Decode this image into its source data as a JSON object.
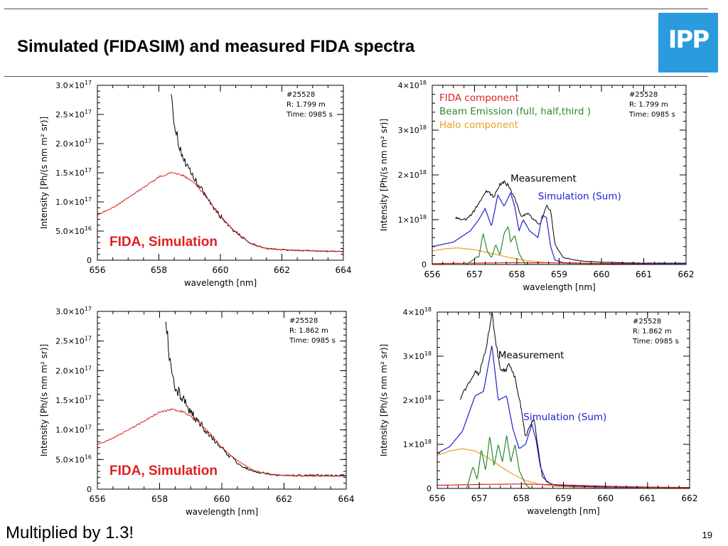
{
  "slide": {
    "title": "Simulated (FIDASIM) and measured FIDA spectra",
    "logo_text": "IPP",
    "footer_note": "Multiplied by 1.3!",
    "page_number": "19",
    "colors": {
      "logo_blue": "#2a9bdc",
      "red": "#e02020",
      "blue": "#2020d0",
      "green": "#2a8a2a",
      "orange": "#e8a020"
    }
  },
  "chart_data": [
    {
      "id": "tl",
      "type": "line",
      "xlabel": "wavelength [nm]",
      "ylabel": "Intensity [Ph/(s nm m² sr)]",
      "xlim": [
        656,
        664
      ],
      "ylim": [
        0,
        3e+17
      ],
      "xticks": [
        "656",
        "658",
        "660",
        "662",
        "664"
      ],
      "yticks": [
        {
          "m": "0",
          "e": ""
        },
        {
          "m": "5.0×10",
          "e": "16"
        },
        {
          "m": "1.0×10",
          "e": "17"
        },
        {
          "m": "1.5×10",
          "e": "17"
        },
        {
          "m": "2.0×10",
          "e": "17"
        },
        {
          "m": "2.5×10",
          "e": "17"
        },
        {
          "m": "3.0×10",
          "e": "17"
        }
      ],
      "info": [
        "#25528",
        "R: 1.799 m",
        "Time: 0985 s"
      ],
      "annotation": "FIDA, Simulation",
      "series": [
        {
          "color": "#000000",
          "noise": 0.05,
          "x": [
            658.4,
            658.45,
            658.55,
            658.7,
            658.9,
            659.2,
            659.6,
            660.0,
            660.5,
            661.0,
            661.5,
            662.0,
            663.0,
            664.0
          ],
          "y": [
            3e+17,
            2.6e+17,
            2.2e+17,
            1.9e+17,
            1.6e+17,
            1.35e+17,
            1.05e+17,
            7.5e+16,
            4.8e+16,
            2.8e+16,
            2e+16,
            1.8e+16,
            1.6e+16,
            1.5e+16
          ]
        },
        {
          "color": "#e02020",
          "noise": 0.012,
          "x": [
            656.0,
            656.5,
            657.0,
            657.5,
            658.0,
            658.4,
            658.8,
            659.2,
            659.6,
            660.0,
            660.5,
            661.0,
            661.5,
            662.0,
            663.0,
            664.0
          ],
          "y": [
            7.8e+16,
            9e+16,
            1.07e+17,
            1.25e+17,
            1.43e+17,
            1.5e+17,
            1.45e+17,
            1.3e+17,
            1.05e+17,
            7.5e+16,
            4.8e+16,
            2.8e+16,
            2e+16,
            1.8e+16,
            1.6e+16,
            1.5e+16
          ]
        }
      ]
    },
    {
      "id": "tr",
      "type": "line",
      "xlabel": "wavelength [nm]",
      "ylabel": "Intensity [Ph/(s nm m² sr)]",
      "xlim": [
        656,
        662
      ],
      "ylim": [
        0,
        4e+18
      ],
      "xticks": [
        "656",
        "657",
        "658",
        "659",
        "660",
        "661",
        "662"
      ],
      "yticks": [
        {
          "m": "0",
          "e": ""
        },
        {
          "m": "1×10",
          "e": "18"
        },
        {
          "m": "2×10",
          "e": "18"
        },
        {
          "m": "3×10",
          "e": "18"
        },
        {
          "m": "4×10",
          "e": "18"
        }
      ],
      "info": [
        "#25528",
        "R: 1.799 m",
        "Time: 0985 s"
      ],
      "legend": [
        {
          "text": "FIDA component",
          "color": "#e02020"
        },
        {
          "text": "Beam Emission (full, half,third )",
          "color": "#2a8a2a"
        },
        {
          "text": "Halo component",
          "color": "#e8a020"
        }
      ],
      "labels": [
        {
          "text": "Measurement",
          "color": "#000000",
          "x": 657.85,
          "y": 1.85e+18
        },
        {
          "text": "Simulation (Sum)",
          "color": "#2020d0",
          "x": 658.5,
          "y": 1.45e+18
        }
      ],
      "series": [
        {
          "name": "Measurement",
          "color": "#000000",
          "noise": 0.025,
          "x": [
            656.55,
            656.8,
            657.0,
            657.2,
            657.3,
            657.45,
            657.6,
            657.7,
            657.8,
            657.95,
            658.1,
            658.25,
            658.4,
            658.55,
            658.7,
            658.8,
            658.9,
            659.1,
            659.5,
            660.0,
            660.5,
            661.0,
            661.5,
            662.0
          ],
          "y": [
            1.05e+18,
            1e+18,
            1.2e+18,
            1.55e+18,
            1.65e+18,
            1.5e+18,
            1.8e+18,
            1.85e+18,
            1.75e+18,
            1.5e+18,
            1.05e+18,
            1.15e+18,
            1e+18,
            9e+17,
            1.3e+18,
            1.2e+18,
            4.5e+17,
            1.5e+17,
            8e+16,
            5e+16,
            4e+16,
            3e+16,
            3e+16,
            3e+16
          ]
        },
        {
          "name": "Simulation (Sum)",
          "color": "#2020d0",
          "noise": 0,
          "x": [
            656.0,
            656.5,
            656.9,
            657.1,
            657.25,
            657.4,
            657.55,
            657.7,
            657.85,
            657.95,
            658.05,
            658.15,
            658.3,
            658.5,
            658.6,
            658.7,
            658.8,
            658.9,
            659.1,
            659.5,
            660.0,
            661.0,
            662.0
          ],
          "y": [
            4e+17,
            5e+17,
            7.5e+17,
            1e+18,
            1.25e+18,
            8.5e+17,
            1.55e+18,
            1.3e+18,
            1.6e+18,
            1.3e+18,
            7.5e+17,
            1e+18,
            7.5e+17,
            6e+17,
            1.1e+18,
            1.05e+18,
            4e+17,
            1e+17,
            4e+16,
            3e+16,
            2e+16,
            2e+16,
            2e+16
          ]
        },
        {
          "name": "Halo component",
          "color": "#e8a020",
          "noise": 0,
          "x": [
            656.0,
            656.3,
            656.6,
            657.0,
            657.4,
            657.8,
            658.2,
            658.6,
            659.0,
            659.5,
            660.0,
            661.0,
            662.0
          ],
          "y": [
            3e+17,
            3.5e+17,
            3.7e+17,
            3.3e+17,
            2.5e+17,
            1.6e+17,
            9e+16,
            5e+16,
            3e+16,
            2e+16,
            1e+16,
            5000000000000000.0,
            0.0
          ]
        },
        {
          "name": "FIDA component",
          "color": "#e02020",
          "noise": 0,
          "x": [
            656.0,
            657.0,
            658.0,
            659.0,
            660.0,
            661.0,
            662.0
          ],
          "y": [
            2e+16,
            3e+16,
            4e+16,
            3.5e+16,
            2e+16,
            1e+16,
            0.0
          ]
        },
        {
          "name": "Beam Emission (full, half,third )",
          "color": "#2a8a2a",
          "noise": 0,
          "x": [
            656.8,
            657.0,
            657.05,
            657.1,
            657.2,
            657.3,
            657.4,
            657.5,
            657.6,
            657.7,
            657.8,
            657.85,
            657.95,
            658.05,
            658.2,
            658.3,
            658.4
          ],
          "y": [
            0.0,
            1.2e+17,
            1.8e+17,
            1.5e+17,
            7e+17,
            3e+17,
            1.5e+17,
            4.5e+17,
            2e+17,
            7e+17,
            8.5e+17,
            5e+17,
            6.5e+17,
            2.5e+17,
            0.0,
            0.0,
            0.0
          ]
        }
      ]
    },
    {
      "id": "bl",
      "type": "line",
      "xlabel": "wavelength [nm]",
      "ylabel": "Intensity [Ph/(s nm m² sr)]",
      "xlim": [
        656,
        664
      ],
      "ylim": [
        0,
        3e+17
      ],
      "xticks": [
        "656",
        "658",
        "660",
        "662",
        "664"
      ],
      "yticks": [
        {
          "m": "0",
          "e": ""
        },
        {
          "m": "5.0×10",
          "e": "16"
        },
        {
          "m": "1.0×10",
          "e": "17"
        },
        {
          "m": "1.5×10",
          "e": "17"
        },
        {
          "m": "2.0×10",
          "e": "17"
        },
        {
          "m": "2.5×10",
          "e": "17"
        },
        {
          "m": "3.0×10",
          "e": "17"
        }
      ],
      "info": [
        "#25528",
        "R: 1.862 m",
        "Time: 0985 s"
      ],
      "annotation": "FIDA, Simulation",
      "series": [
        {
          "color": "#000000",
          "noise": 0.06,
          "x": [
            658.2,
            658.25,
            658.35,
            658.5,
            658.7,
            659.0,
            659.4,
            659.8,
            660.2,
            660.6,
            661.0,
            661.5,
            662.0,
            663.0,
            664.0
          ],
          "y": [
            3e+17,
            2.6e+17,
            2.1e+17,
            1.75e+17,
            1.55e+17,
            1.3e+17,
            1.05e+17,
            8e+16,
            5.8e+16,
            4e+16,
            3e+16,
            2.5e+16,
            2.3e+16,
            2.3e+16,
            2.3e+16
          ]
        },
        {
          "color": "#e02020",
          "noise": 0.012,
          "x": [
            656.0,
            656.5,
            657.0,
            657.5,
            658.0,
            658.4,
            658.8,
            659.2,
            659.6,
            660.0,
            660.5,
            661.0,
            661.5,
            662.0,
            663.0,
            664.0
          ],
          "y": [
            7.5e+16,
            8.6e+16,
            1e+17,
            1.15e+17,
            1.3e+17,
            1.35e+17,
            1.3e+17,
            1.15e+17,
            9.5e+16,
            7e+16,
            4.8e+16,
            3.2e+16,
            2.5e+16,
            2.3e+16,
            2.2e+16,
            2.2e+16
          ]
        }
      ]
    },
    {
      "id": "br",
      "type": "line",
      "xlabel": "wavelength [nm]",
      "ylabel": "Intensity [Ph/(s nm m² sr)]",
      "xlim": [
        656,
        662
      ],
      "ylim": [
        0,
        4e+18
      ],
      "xticks": [
        "656",
        "657",
        "658",
        "659",
        "660",
        "661",
        "662"
      ],
      "yticks": [
        {
          "m": "0",
          "e": ""
        },
        {
          "m": "1×10",
          "e": "18"
        },
        {
          "m": "2×10",
          "e": "18"
        },
        {
          "m": "3×10",
          "e": "18"
        },
        {
          "m": "4×10",
          "e": "18"
        }
      ],
      "info": [
        "#25528",
        "R: 1.862 m",
        "Time: 0985 s"
      ],
      "labels": [
        {
          "text": "Measurement",
          "color": "#000000",
          "x": 657.45,
          "y": 2.95e+18
        },
        {
          "text": "Simulation (Sum)",
          "color": "#2020d0",
          "x": 658.05,
          "y": 1.55e+18
        }
      ],
      "series": [
        {
          "name": "Measurement",
          "color": "#000000",
          "noise": 0.02,
          "x": [
            656.55,
            656.7,
            656.9,
            657.0,
            657.15,
            657.3,
            657.4,
            657.5,
            657.6,
            657.7,
            657.85,
            658.0,
            658.1,
            658.2,
            658.3,
            658.4,
            658.5,
            658.7,
            659.0,
            659.5,
            660.0,
            660.5,
            661.0,
            661.5,
            662.0
          ],
          "y": [
            2.05e+18,
            2.3e+18,
            2.65e+18,
            2.6e+18,
            3.1e+18,
            3.95e+18,
            3.3e+18,
            2.7e+18,
            2.65e+18,
            2.8e+18,
            2.5e+18,
            1.8e+18,
            1.15e+18,
            1.4e+18,
            1.6e+18,
            9e+17,
            2.5e+17,
            1e+17,
            6e+16,
            5e+16,
            4e+16,
            3e+16,
            3e+16,
            2e+16,
            2e+16
          ]
        },
        {
          "name": "Simulation (Sum)",
          "color": "#2020d0",
          "noise": 0,
          "x": [
            656.0,
            656.3,
            656.6,
            656.9,
            657.1,
            657.3,
            657.45,
            657.65,
            657.8,
            657.95,
            658.1,
            658.25,
            658.35,
            658.45,
            658.6,
            658.8,
            659.2,
            660.0,
            661.0,
            662.0
          ],
          "y": [
            8e+17,
            9.5e+17,
            1.3e+18,
            2.1e+18,
            2.2e+18,
            3.25e+18,
            2e+18,
            2.1e+18,
            1.35e+18,
            9e+17,
            1e+18,
            1.45e+18,
            1.1e+18,
            5e+17,
            1.5e+17,
            7e+16,
            5e+16,
            3e+16,
            2e+16,
            2e+16
          ]
        },
        {
          "name": "Halo component",
          "color": "#e8a020",
          "noise": 0,
          "x": [
            656.0,
            656.3,
            656.6,
            656.9,
            657.2,
            657.5,
            657.8,
            658.1,
            658.4,
            658.8,
            659.2,
            659.6,
            660.0,
            661.0,
            662.0
          ],
          "y": [
            7.5e+17,
            8.5e+17,
            9e+17,
            8.5e+17,
            7e+17,
            5e+17,
            3.2e+17,
            1.8e+17,
            1e+17,
            5e+16,
            3e+16,
            2e+16,
            1e+16,
            5000000000000000.0,
            0.0
          ]
        },
        {
          "name": "FIDA component",
          "color": "#e02020",
          "noise": 0,
          "x": [
            656.0,
            657.0,
            658.0,
            659.0,
            660.0,
            661.0,
            662.0
          ],
          "y": [
            7e+16,
            9e+16,
            1e+17,
            8e+16,
            5e+16,
            3e+16,
            2e+16
          ]
        },
        {
          "name": "Beam Emission (full, half,third )",
          "color": "#2a8a2a",
          "noise": 0,
          "x": [
            656.7,
            656.85,
            656.95,
            657.05,
            657.15,
            657.25,
            657.35,
            657.45,
            657.55,
            657.65,
            657.75,
            657.85,
            657.95,
            658.1,
            658.2,
            658.3,
            658.45,
            658.6
          ],
          "y": [
            0.0,
            5e+17,
            2e+17,
            9e+17,
            4e+17,
            1.2e+18,
            5e+17,
            1e+18,
            6e+17,
            1.2e+18,
            6e+17,
            1e+18,
            4e+17,
            1e+17,
            0.0,
            0.0,
            0.0,
            0.0
          ]
        }
      ]
    }
  ]
}
